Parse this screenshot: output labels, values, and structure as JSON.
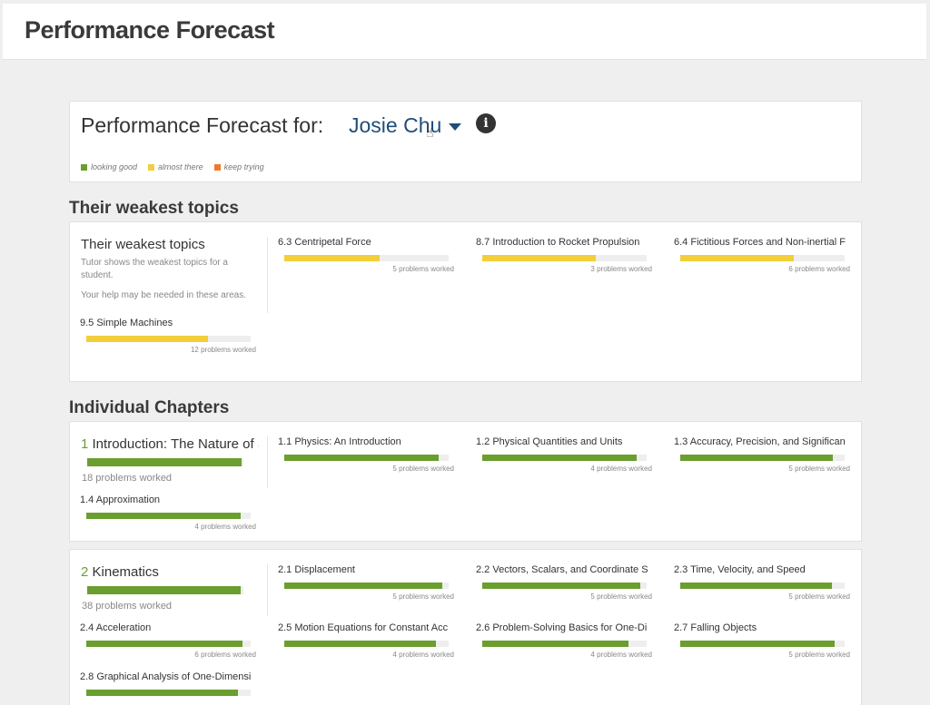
{
  "page_title": "Performance Forecast",
  "forecast": {
    "title": "Performance Forecast for:",
    "student": "Josie Chu",
    "info_icon": "info-icon"
  },
  "legend": [
    {
      "label": "looking good",
      "color": "#6a9e2f"
    },
    {
      "label": "almost there",
      "color": "#f2cf3a"
    },
    {
      "label": "keep trying",
      "color": "#f0782a"
    }
  ],
  "weakest": {
    "section_heading": "Their weakest topics",
    "title": "Their weakest topics",
    "desc1": "Tutor shows the weakest topics for a student.",
    "desc2": "Your help may be needed in these areas.",
    "topics": [
      {
        "name": "6.3 Centripetal Force",
        "progress": 0.58,
        "worked": "5 problems worked"
      },
      {
        "name": "8.7 Introduction to Rocket Propulsion",
        "progress": 0.69,
        "worked": "3 problems worked"
      },
      {
        "name": "6.4 Fictitious Forces and Non-inertial F",
        "progress": 0.69,
        "worked": "6 problems worked"
      },
      {
        "name": "9.5 Simple Machines",
        "progress": 0.74,
        "worked": "12 problems worked"
      }
    ]
  },
  "chapters": {
    "section_heading": "Individual Chapters",
    "list": [
      {
        "number": "1",
        "title": "Introduction: The Nature of S",
        "progress": 0.99,
        "worked": "18 problems worked",
        "sections": [
          {
            "name": "1.1 Physics: An Introduction",
            "progress": 0.94,
            "worked": "5 problems worked"
          },
          {
            "name": "1.2 Physical Quantities and Units",
            "progress": 0.94,
            "worked": "4 problems worked"
          },
          {
            "name": "1.3 Accuracy, Precision, and Significan",
            "progress": 0.93,
            "worked": "5 problems worked"
          },
          {
            "name": "1.4 Approximation",
            "progress": 0.94,
            "worked": "4 problems worked"
          }
        ]
      },
      {
        "number": "2",
        "title": "Kinematics",
        "progress": 0.98,
        "worked": "38 problems worked",
        "sections": [
          {
            "name": "2.1 Displacement",
            "progress": 0.96,
            "worked": "5 problems worked"
          },
          {
            "name": "2.2 Vectors, Scalars, and Coordinate S",
            "progress": 0.96,
            "worked": "5 problems worked"
          },
          {
            "name": "2.3 Time, Velocity, and Speed",
            "progress": 0.92,
            "worked": "5 problems worked"
          },
          {
            "name": "2.4 Acceleration",
            "progress": 0.95,
            "worked": "6 problems worked"
          },
          {
            "name": "2.5 Motion Equations for Constant Acc",
            "progress": 0.92,
            "worked": "4 problems worked"
          },
          {
            "name": "2.6 Problem-Solving Basics for One-Di",
            "progress": 0.89,
            "worked": "4 problems worked"
          },
          {
            "name": "2.7 Falling Objects",
            "progress": 0.94,
            "worked": "5 problems worked"
          },
          {
            "name": "2.8 Graphical Analysis of One-Dimensi",
            "progress": 0.92,
            "worked": ""
          }
        ]
      }
    ]
  },
  "colors": {
    "good": "#6a9e2f",
    "almost": "#f2cf3a",
    "keep": "#f0782a",
    "student_link": "#1f4e79"
  }
}
